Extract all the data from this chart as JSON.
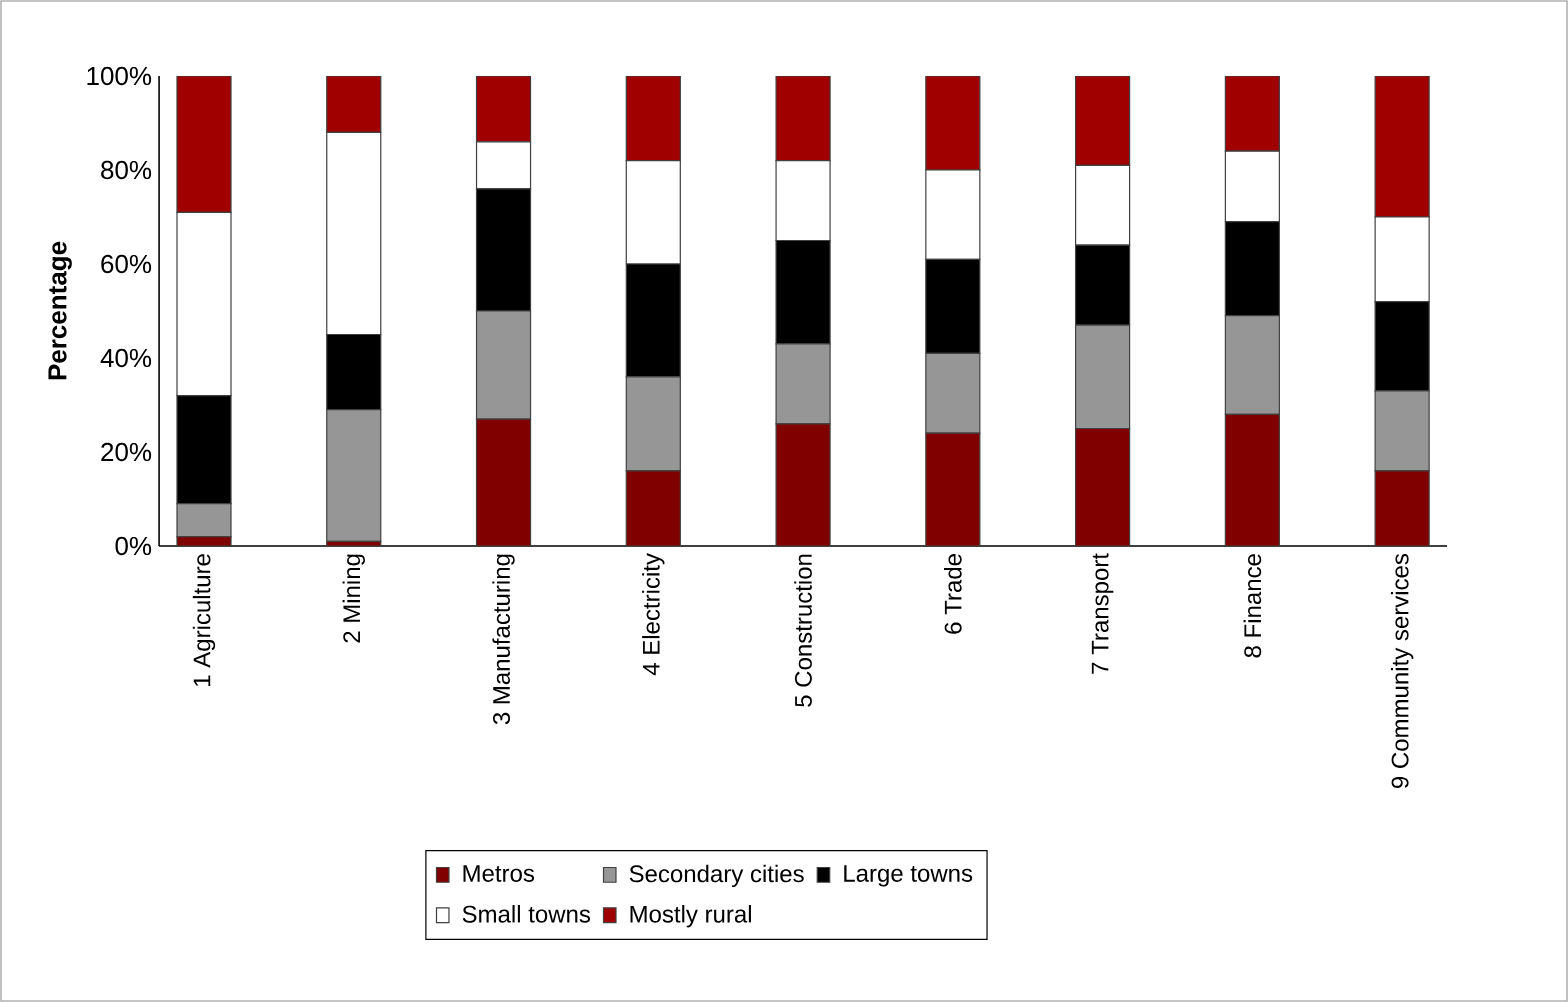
{
  "chart_data": {
    "type": "bar",
    "stacked": true,
    "ylabel": "Percentage",
    "categories": [
      "1 Agriculture",
      "2 Mining",
      "3 Manufacturing",
      "4 Electricity",
      "5 Construction",
      "6 Trade",
      "7 Transport",
      "8 Finance",
      "9 Community services"
    ],
    "series": [
      {
        "name": "Metros",
        "color": "#800000",
        "values": [
          2,
          1,
          27,
          16,
          26,
          24,
          25,
          28,
          16
        ]
      },
      {
        "name": "Secondary cities",
        "color": "#969696",
        "values": [
          7,
          28,
          23,
          20,
          17,
          17,
          22,
          21,
          17
        ]
      },
      {
        "name": "Large towns",
        "color": "#000000",
        "values": [
          23,
          16,
          26,
          24,
          22,
          20,
          17,
          20,
          19
        ]
      },
      {
        "name": "Small towns",
        "color": "#ffffff",
        "values": [
          39,
          43,
          10,
          22,
          17,
          19,
          17,
          15,
          18
        ]
      },
      {
        "name": "Mostly rural",
        "color": "#a00000",
        "values": [
          29,
          12,
          14,
          18,
          18,
          20,
          19,
          16,
          30
        ]
      }
    ],
    "ylim": [
      0,
      100
    ],
    "yticks": [
      {
        "value": 0,
        "label": "0%"
      },
      {
        "value": 20,
        "label": "20%"
      },
      {
        "value": 40,
        "label": "40%"
      },
      {
        "value": 60,
        "label": "60%"
      },
      {
        "value": 80,
        "label": "80%"
      },
      {
        "value": 100,
        "label": "100%"
      }
    ],
    "grid": false,
    "legend": "bottom"
  }
}
